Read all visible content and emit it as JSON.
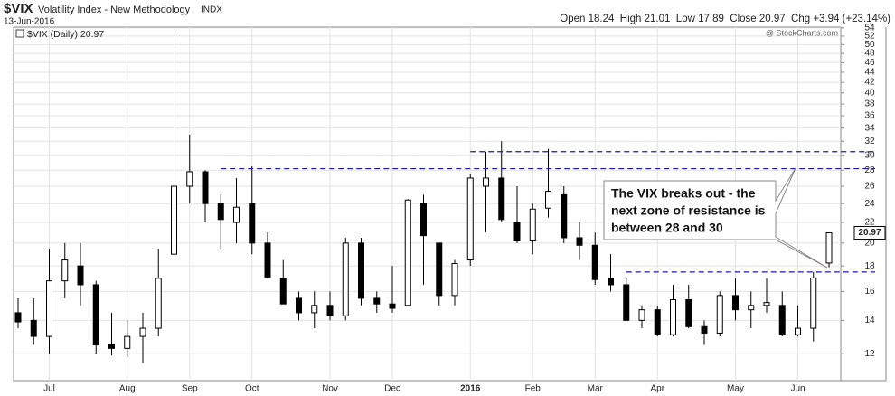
{
  "chart_data": {
    "type": "candlestick",
    "symbol": "$VIX",
    "title": "Volatility Index - New Methodology",
    "exchange": "INDX",
    "date": "13-Jun-2016",
    "quote": "Open 18.24  High 21.01  Low 17.89  Close 20.97  Chg +3.94 (+23.14%)",
    "source": "@ StockCharts.com",
    "last_price_label": "20.97",
    "annotation": [
      "The VIX breaks out - the",
      "next zone of resistance is",
      "between 28 and 30"
    ],
    "categories": [
      null,
      null,
      "Jul",
      null,
      null,
      null,
      null,
      "Aug",
      null,
      null,
      null,
      "Sep",
      null,
      null,
      null,
      "Oct",
      null,
      null,
      null,
      null,
      "Nov",
      null,
      null,
      null,
      "Dec",
      null,
      null,
      null,
      null,
      "2016",
      null,
      null,
      null,
      "Feb",
      null,
      null,
      null,
      "Mar",
      null,
      null,
      null,
      "Apr",
      null,
      null,
      null,
      null,
      "May",
      null,
      null,
      null,
      "Jun",
      null,
      null
    ],
    "series": [
      {
        "name": "$VIX (Daily) 20.97",
        "color": "#000000",
        "open": [
          14.5,
          14,
          13,
          16.8,
          18,
          16.5,
          12.5,
          12.3,
          13,
          13.5,
          19,
          26,
          27.8,
          24,
          22,
          24,
          20,
          17,
          15.5,
          14.5,
          15,
          14.3,
          20,
          15.5,
          15.1,
          15,
          24,
          20,
          15.7,
          18.5,
          26,
          27,
          22,
          20.2,
          23.5,
          25,
          20.5,
          19.8,
          17,
          16.5,
          14,
          14.7,
          13.1,
          15.4,
          13.6,
          13.2,
          15.7,
          14.7,
          15,
          15,
          13.1,
          13.5,
          18.24
        ],
        "high": [
          15.5,
          15.5,
          19.5,
          20,
          20,
          16.8,
          14.5,
          14,
          14.5,
          19.5,
          53,
          33,
          28,
          25,
          27,
          28.5,
          21,
          18.5,
          16,
          16,
          16,
          20.5,
          20.5,
          16,
          18,
          24.5,
          25,
          20,
          18.5,
          27.5,
          30.5,
          32,
          26,
          24,
          30.9,
          26,
          22,
          21,
          19,
          17,
          15,
          15,
          16.5,
          16.5,
          14,
          16,
          17,
          16,
          17,
          16,
          15,
          17.5,
          21.01
        ],
        "low": [
          13.5,
          12.5,
          12,
          15.5,
          15,
          12,
          11.9,
          11.8,
          11.5,
          13,
          19,
          24,
          22,
          19.5,
          20,
          19,
          17,
          15.5,
          14,
          13.5,
          14,
          14,
          15,
          14.5,
          14.5,
          15,
          16.5,
          15,
          15,
          18,
          21,
          22,
          20,
          19,
          22.5,
          20,
          18.5,
          16.5,
          16,
          14,
          13.5,
          13,
          13,
          13.5,
          12.5,
          13,
          14,
          13.5,
          14.5,
          13,
          13,
          12.7,
          17.89
        ],
        "close": [
          13.9,
          13,
          16.8,
          18.5,
          16.5,
          12.5,
          12.3,
          13,
          13.5,
          17,
          26,
          27.8,
          24,
          22.3,
          23.6,
          20,
          17.1,
          15.1,
          14.5,
          15,
          14.3,
          20,
          15.5,
          15.1,
          14.8,
          24.4,
          20.7,
          15.7,
          18.2,
          27,
          27,
          22.3,
          20.2,
          23.4,
          25.4,
          20.5,
          19.8,
          16.9,
          16.5,
          14,
          14.7,
          13.1,
          15.4,
          13.6,
          13.2,
          15.7,
          14.7,
          15,
          15.2,
          13.1,
          13.5,
          17.03,
          20.97
        ]
      }
    ],
    "resistance_lines": [
      {
        "value": 28.2,
        "start": 13
      },
      {
        "value": 30.5,
        "start": 29
      },
      {
        "value": 17.5,
        "start": 39
      }
    ],
    "ylim": [
      10.6,
      54.2
    ],
    "log_scale": true,
    "yticks": [
      12,
      14,
      16,
      18,
      20,
      22,
      24,
      26,
      28,
      30,
      32,
      34,
      36,
      38,
      40,
      42,
      44,
      46,
      48,
      50,
      52,
      54
    ],
    "grid": true
  }
}
